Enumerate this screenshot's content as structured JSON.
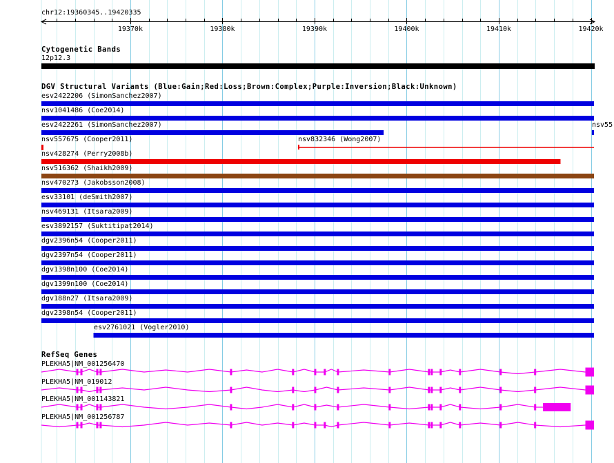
{
  "region": {
    "label": "chr12:19360345..19420335",
    "chrom": "chr12",
    "start": 19360345,
    "end": 19420335
  },
  "ruler": {
    "minor_step_bp": 2000,
    "major_ticks": [
      {
        "bp": 19370000,
        "label": "19370k"
      },
      {
        "bp": 19380000,
        "label": "19380k"
      },
      {
        "bp": 19390000,
        "label": "19390k"
      },
      {
        "bp": 19400000,
        "label": "19400k"
      },
      {
        "bp": 19410000,
        "label": "19410k"
      },
      {
        "bp": 19420000,
        "label": "19420k"
      }
    ]
  },
  "colors": {
    "gain": "#0000e0",
    "loss": "#ee0000",
    "complex": "#8b4513",
    "inversion": "#800080",
    "unknown": "#000000",
    "gene": "#f000f0",
    "grid_minor": "#cceef0",
    "grid_major": "#85cce4",
    "text": "#000000",
    "background": "#ffffff"
  },
  "sections": {
    "cytobands": {
      "title": "Cytogenetic Bands",
      "band": {
        "name": "12p12.3",
        "type": "unknown",
        "start": 19360345,
        "end": 19420335
      }
    },
    "dgv": {
      "title": "DGV Structural Variants (Blue:Gain;Red:Loss;Brown:Complex;Purple:Inversion;Black:Unknown)",
      "rows": [
        {
          "features": [
            {
              "id": "esv2422206",
              "label": "esv2422206 (SimonSanchez2007)",
              "type": "gain",
              "shape": "bar",
              "start": 19360345,
              "end": 19420335
            }
          ]
        },
        {
          "features": [
            {
              "id": "nsv1041486",
              "label": "nsv1041486 (Coe2014)",
              "type": "gain",
              "shape": "bar",
              "start": 19360345,
              "end": 19420335
            }
          ]
        },
        {
          "features": [
            {
              "id": "esv2422261",
              "label": "esv2422261 (SimonSanchez2007)",
              "type": "gain",
              "shape": "bar",
              "start": 19360345,
              "end": 19397500
            },
            {
              "id": "nsv55",
              "label": "nsv55",
              "type": "gain",
              "shape": "bar",
              "start": 19420100,
              "end": 19420335
            }
          ]
        },
        {
          "features": [
            {
              "id": "nsv557675",
              "label": "nsv557675 (Cooper2011)",
              "type": "loss",
              "shape": "tick",
              "start": 19360345,
              "end": 19360560
            },
            {
              "id": "nsv832346",
              "label": "nsv832346 (Wong2007)",
              "type": "loss",
              "shape": "thin-line",
              "start": 19388200,
              "end": 19420335
            }
          ]
        },
        {
          "features": [
            {
              "id": "nsv428274",
              "label": "nsv428274 (Perry2008b)",
              "type": "loss",
              "shape": "bar",
              "start": 19360345,
              "end": 19416700
            }
          ]
        },
        {
          "features": [
            {
              "id": "nsv516362",
              "label": "nsv516362 (Shaikh2009)",
              "type": "complex",
              "shape": "bar",
              "start": 19360345,
              "end": 19420335
            }
          ]
        },
        {
          "features": [
            {
              "id": "nsv470273",
              "label": "nsv470273 (Jakobsson2008)",
              "type": "gain",
              "shape": "bar",
              "start": 19360345,
              "end": 19420335
            }
          ]
        },
        {
          "features": [
            {
              "id": "esv33101",
              "label": "esv33101 (deSmith2007)",
              "type": "gain",
              "shape": "bar",
              "start": 19360345,
              "end": 19420335
            }
          ]
        },
        {
          "features": [
            {
              "id": "nsv469131",
              "label": "nsv469131 (Itsara2009)",
              "type": "gain",
              "shape": "bar",
              "start": 19360345,
              "end": 19420335
            }
          ]
        },
        {
          "features": [
            {
              "id": "esv3892157",
              "label": "esv3892157 (Suktitipat2014)",
              "type": "gain",
              "shape": "bar",
              "start": 19360345,
              "end": 19420335
            }
          ]
        },
        {
          "features": [
            {
              "id": "dgv2396n54",
              "label": "dgv2396n54 (Cooper2011)",
              "type": "gain",
              "shape": "bar",
              "start": 19360345,
              "end": 19420335
            }
          ]
        },
        {
          "features": [
            {
              "id": "dgv2397n54",
              "label": "dgv2397n54 (Cooper2011)",
              "type": "gain",
              "shape": "bar",
              "start": 19360345,
              "end": 19420335
            }
          ]
        },
        {
          "features": [
            {
              "id": "dgv1398n100",
              "label": "dgv1398n100 (Coe2014)",
              "type": "gain",
              "shape": "bar",
              "start": 19360345,
              "end": 19420335
            }
          ]
        },
        {
          "features": [
            {
              "id": "dgv1399n100",
              "label": "dgv1399n100 (Coe2014)",
              "type": "gain",
              "shape": "bar",
              "start": 19360345,
              "end": 19420335
            }
          ]
        },
        {
          "features": [
            {
              "id": "dgv188n27",
              "label": "dgv188n27 (Itsara2009)",
              "type": "gain",
              "shape": "bar",
              "start": 19360345,
              "end": 19420335
            }
          ]
        },
        {
          "features": [
            {
              "id": "dgv2398n54",
              "label": "dgv2398n54 (Cooper2011)",
              "type": "gain",
              "shape": "bar",
              "start": 19360345,
              "end": 19420335
            }
          ]
        },
        {
          "features": [
            {
              "id": "esv2761021",
              "label": "esv2761021 (Vogler2010)",
              "type": "gain",
              "shape": "bar",
              "start": 19366000,
              "end": 19420335
            }
          ]
        }
      ]
    },
    "refseq": {
      "title": "RefSeq Genes",
      "genes": [
        {
          "id": "NM_001256470",
          "label": "PLEKHA5|NM_001256470",
          "exons": [
            19364240,
            19364690,
            19366410,
            19366780,
            19380930,
            19387670,
            19390070,
            19391110,
            19392540,
            19398150,
            19402420,
            19402720,
            19403690,
            19405790,
            19410200,
            19413950
          ],
          "end_block": [
            19419400,
            19420335
          ],
          "end_block_tall": true
        },
        {
          "id": "NM_019012",
          "label": "PLEKHA5|NM_019012",
          "exons": [
            19364240,
            19364690,
            19366410,
            19366780,
            19380930,
            19387670,
            19390070,
            19392540,
            19398150,
            19402420,
            19402720,
            19403690,
            19405790,
            19410200,
            19413950
          ],
          "end_block": [
            19419400,
            19420335
          ],
          "end_block_tall": true
        },
        {
          "id": "NM_001143821",
          "label": "PLEKHA5|NM_001143821",
          "exons": [
            19364240,
            19364690,
            19366410,
            19366780,
            19380930,
            19387670,
            19390070,
            19392540,
            19398150,
            19402420,
            19402720,
            19403690,
            19405790,
            19410200,
            19413950
          ],
          "end_block": [
            19414800,
            19417800
          ],
          "end_block_tall": false
        },
        {
          "id": "NM_001256787",
          "label": "PLEKHA5|NM_001256787",
          "exons": [
            19364240,
            19364690,
            19366410,
            19366780,
            19380930,
            19387670,
            19390070,
            19391110,
            19392540,
            19398150,
            19402420,
            19402720,
            19403690,
            19405790,
            19410200,
            19413950
          ],
          "end_block": [
            19419400,
            19420335
          ],
          "end_block_tall": true
        }
      ]
    }
  }
}
